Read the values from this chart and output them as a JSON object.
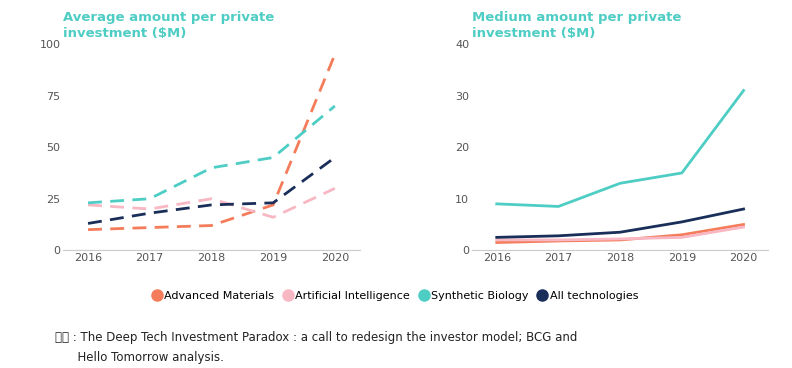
{
  "years": [
    2016,
    2017,
    2018,
    2019,
    2020
  ],
  "left_title": "Average amount per private\ninvestment ($M)",
  "right_title": "Medium amount per private\ninvestment ($M)",
  "left_ylim": [
    0,
    100
  ],
  "right_ylim": [
    0,
    40
  ],
  "left_yticks": [
    0,
    25,
    50,
    75,
    100
  ],
  "right_yticks": [
    0,
    10,
    20,
    30,
    40
  ],
  "series": {
    "Advanced Materials": {
      "color": "#f47c5a",
      "left": [
        10,
        11,
        12,
        22,
        95
      ],
      "right": [
        1.5,
        1.8,
        2.0,
        3.0,
        5.0
      ]
    },
    "Artificial Intelligence": {
      "color": "#f7b8c4",
      "left": [
        22,
        20,
        25,
        16,
        30
      ],
      "right": [
        2.0,
        2.0,
        2.2,
        2.5,
        4.5
      ]
    },
    "Synthetic Biology": {
      "color": "#4ecdc4",
      "left": [
        23,
        25,
        40,
        45,
        70
      ],
      "right": [
        9.0,
        8.5,
        13.0,
        15.0,
        31.0
      ]
    },
    "All technologies": {
      "color": "#1a2e5a",
      "left": [
        13,
        18,
        22,
        23,
        45
      ],
      "right": [
        2.5,
        2.8,
        3.5,
        5.5,
        8.0
      ]
    }
  },
  "legend_order": [
    "Advanced Materials",
    "Artificial Intelligence",
    "Synthetic Biology",
    "All technologies"
  ],
  "source_line1": "출처 : The Deep Tech Investment Paradox : a call to redesign the investor model; BCG and",
  "source_line2": "      Hello Tomorrow analysis.",
  "title_color": "#4ecdc4",
  "bg_color": "#ffffff",
  "axis_color": "#cccccc",
  "tick_color": "#555555"
}
